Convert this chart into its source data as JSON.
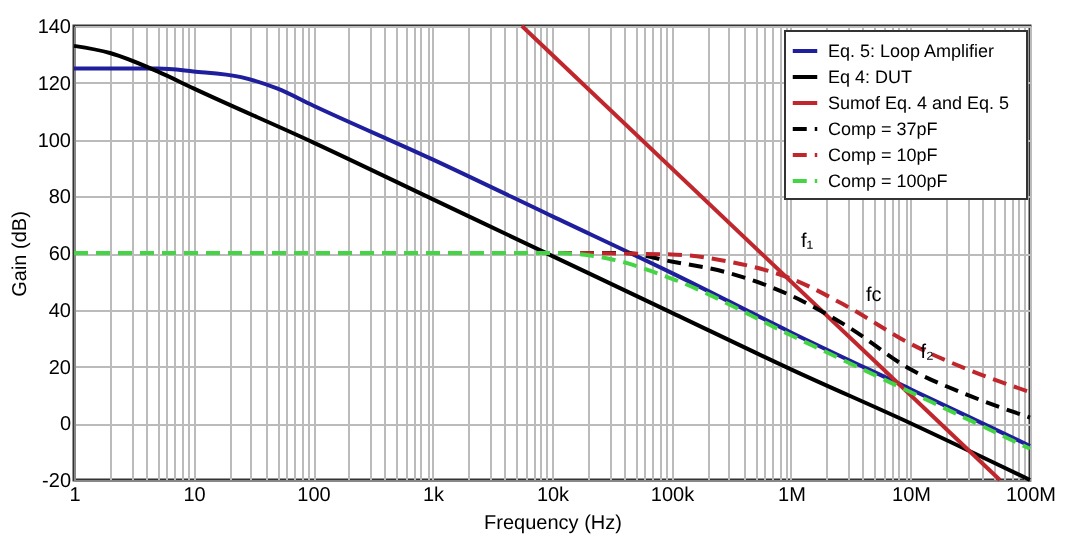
{
  "chart_data": {
    "type": "line",
    "xlabel": "Frequency (Hz)",
    "ylabel": "Gain (dB)",
    "log": "x",
    "grid": true,
    "legend": "top right",
    "marker": "none",
    "xlim": [
      1,
      100000000
    ],
    "ylim": [
      -20,
      140
    ],
    "xticks": [
      {
        "value": 1,
        "label": "1"
      },
      {
        "value": 10,
        "label": "10"
      },
      {
        "value": 100,
        "label": "100"
      },
      {
        "value": 1000,
        "label": "1k"
      },
      {
        "value": 10000,
        "label": "10k"
      },
      {
        "value": 100000,
        "label": "100k"
      },
      {
        "value": 1000000,
        "label": "1M"
      },
      {
        "value": 10000000,
        "label": "10M"
      },
      {
        "value": 100000000,
        "label": "100M"
      },
      {
        "value": 2,
        "label": null
      },
      {
        "value": 3,
        "label": null
      },
      {
        "value": 4,
        "label": null
      },
      {
        "value": 5,
        "label": null
      },
      {
        "value": 6,
        "label": null
      },
      {
        "value": 7,
        "label": null
      },
      {
        "value": 8,
        "label": null
      },
      {
        "value": 9,
        "label": null
      },
      {
        "value": 20,
        "label": null
      },
      {
        "value": 30,
        "label": null
      },
      {
        "value": 40,
        "label": null
      },
      {
        "value": 50,
        "label": null
      },
      {
        "value": 60,
        "label": null
      },
      {
        "value": 70,
        "label": null
      },
      {
        "value": 80,
        "label": null
      },
      {
        "value": 90,
        "label": null
      },
      {
        "value": 200,
        "label": null
      },
      {
        "value": 300,
        "label": null
      },
      {
        "value": 400,
        "label": null
      },
      {
        "value": 500,
        "label": null
      },
      {
        "value": 600,
        "label": null
      },
      {
        "value": 700,
        "label": null
      },
      {
        "value": 800,
        "label": null
      },
      {
        "value": 900,
        "label": null
      },
      {
        "value": 2000,
        "label": null
      },
      {
        "value": 3000,
        "label": null
      },
      {
        "value": 4000,
        "label": null
      },
      {
        "value": 5000,
        "label": null
      },
      {
        "value": 6000,
        "label": null
      },
      {
        "value": 7000,
        "label": null
      },
      {
        "value": 8000,
        "label": null
      },
      {
        "value": 9000,
        "label": null
      },
      {
        "value": 20000,
        "label": null
      },
      {
        "value": 30000,
        "label": null
      },
      {
        "value": 40000,
        "label": null
      },
      {
        "value": 50000,
        "label": null
      },
      {
        "value": 60000,
        "label": null
      },
      {
        "value": 70000,
        "label": null
      },
      {
        "value": 80000,
        "label": null
      },
      {
        "value": 90000,
        "label": null
      },
      {
        "value": 200000,
        "label": null
      },
      {
        "value": 300000,
        "label": null
      },
      {
        "value": 400000,
        "label": null
      },
      {
        "value": 500000,
        "label": null
      },
      {
        "value": 600000,
        "label": null
      },
      {
        "value": 700000,
        "label": null
      },
      {
        "value": 800000,
        "label": null
      },
      {
        "value": 900000,
        "label": null
      },
      {
        "value": 2000000,
        "label": null
      },
      {
        "value": 3000000,
        "label": null
      },
      {
        "value": 4000000,
        "label": null
      },
      {
        "value": 5000000,
        "label": null
      },
      {
        "value": 6000000,
        "label": null
      },
      {
        "value": 7000000,
        "label": null
      },
      {
        "value": 8000000,
        "label": null
      },
      {
        "value": 9000000,
        "label": null
      },
      {
        "value": 20000000,
        "label": null
      },
      {
        "value": 30000000,
        "label": null
      },
      {
        "value": 40000000,
        "label": null
      },
      {
        "value": 50000000,
        "label": null
      },
      {
        "value": 60000000,
        "label": null
      },
      {
        "value": 70000000,
        "label": null
      },
      {
        "value": 80000000,
        "label": null
      },
      {
        "value": 90000000,
        "label": null
      }
    ],
    "yticks": [
      -20,
      0,
      20,
      40,
      60,
      80,
      100,
      120,
      140
    ],
    "series": [
      {
        "name": "Eq. 5: Loop Amplifier",
        "color": "#1f1f9e",
        "line_style": "solid",
        "x": [
          1,
          5,
          10,
          25,
          50,
          100,
          1000,
          10000,
          100000,
          1000000,
          10000000,
          100000000
        ],
        "values": [
          125,
          125,
          124,
          122,
          118,
          112,
          93,
          73,
          53,
          32,
          12,
          -8
        ]
      },
      {
        "name": "Eq 4: DUT",
        "color": "#000000",
        "line_style": "solid",
        "x": [
          1,
          2,
          5,
          10,
          100,
          1000,
          10000,
          100000,
          1000000,
          10000000,
          100000000
        ],
        "values": [
          133,
          130.5,
          124,
          118,
          99,
          79,
          59,
          39,
          19,
          0,
          -20
        ]
      },
      {
        "name": "Sumof  Eq. 4 and  Eq. 5",
        "color": "#c0272d",
        "line_style": "solid",
        "x": [
          5600,
          56000000
        ],
        "values": [
          140,
          -20
        ]
      },
      {
        "name": "Comp = 37pF",
        "color": "#000000",
        "line_style": "dashed",
        "x": [
          1,
          10000,
          40000,
          100000,
          300000,
          1000000,
          3000000,
          10000000,
          30000000,
          100000000
        ],
        "values": [
          60,
          60,
          60,
          57,
          53,
          45,
          34,
          19,
          10,
          2
        ]
      },
      {
        "name": "Comp = 10pF",
        "color": "#c0272d",
        "line_style": "dashed",
        "x": [
          1,
          10000,
          100000,
          300000,
          1000000,
          3000000,
          10000000,
          30000000,
          100000000
        ],
        "values": [
          60,
          60,
          59.5,
          57,
          51,
          41,
          28,
          19,
          11
        ]
      },
      {
        "name": "Comp = 100pF",
        "color": "#44d444",
        "line_style": "dashed",
        "x": [
          1,
          10000,
          30000,
          100000,
          1000000,
          10000000,
          100000000
        ],
        "values": [
          60,
          60,
          58,
          51,
          31,
          11,
          -9
        ]
      }
    ],
    "annotations": [
      {
        "text": "f₁",
        "x": 1000000,
        "y": 50
      },
      {
        "text": "fc",
        "x": 3500000,
        "y": 31
      },
      {
        "text": "f₂",
        "x": 10000000,
        "y": 11
      }
    ]
  }
}
